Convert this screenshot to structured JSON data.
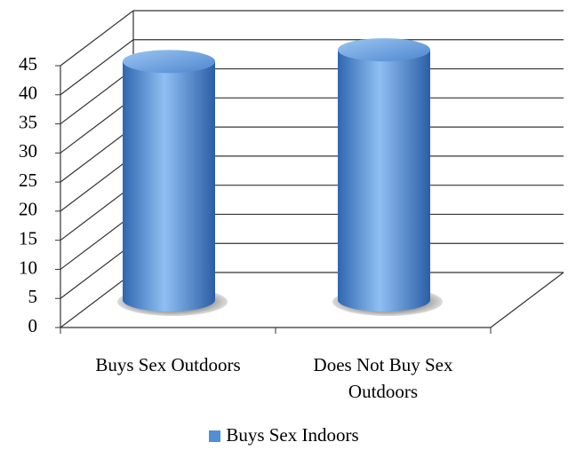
{
  "chart_data": {
    "type": "bar",
    "style": "3d-cylinder",
    "categories": [
      "Buys Sex Outdoors",
      "Does Not Buy Sex Outdoors"
    ],
    "series": [
      {
        "name": "Buys Sex Indoors",
        "color": "#4f8fd8",
        "values": [
          41,
          43
        ]
      }
    ],
    "ylim": [
      0,
      45
    ],
    "yticks": [
      0,
      5,
      10,
      15,
      20,
      25,
      30,
      35,
      40,
      45
    ],
    "grid": true,
    "legend": "bottom"
  }
}
